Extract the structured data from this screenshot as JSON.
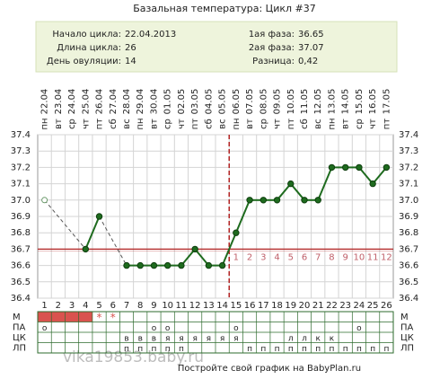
{
  "chart_data": {
    "type": "line",
    "title": "Базальная температура: Цикл #37",
    "info": {
      "left": [
        {
          "label": "Начало цикла:",
          "value": "22.04.2013"
        },
        {
          "label": "Длина цикла:",
          "value": 26
        },
        {
          "label": "День овуляции:",
          "value": 14
        }
      ],
      "right": [
        {
          "label": "1ая фаза:",
          "value": 36.65
        },
        {
          "label": "2ая фаза:",
          "value": 37.07
        },
        {
          "label": "Разница:",
          "value": 0.42,
          "value_label": "0,42"
        }
      ]
    },
    "categories": [
      "22.04",
      "23.04",
      "24.04",
      "25.04",
      "26.04",
      "27.04",
      "28.04",
      "29.04",
      "30.04",
      "01.05",
      "02.05",
      "03.05",
      "04.05",
      "05.05",
      "06.05",
      "07.05",
      "08.05",
      "09.05",
      "10.05",
      "11.05",
      "12.05",
      "13.05",
      "14.05",
      "15.05",
      "16.05",
      "17.05"
    ],
    "weekdays": [
      "пн",
      "вт",
      "ср",
      "чт",
      "пт",
      "сб",
      "вс",
      "пн",
      "вт",
      "ср",
      "чт",
      "пт",
      "сб",
      "вс",
      "пн",
      "вт",
      "ср",
      "чт",
      "пт",
      "сб",
      "вс",
      "пн",
      "вт",
      "ср",
      "чт",
      "пт"
    ],
    "day_numbers": [
      1,
      2,
      3,
      4,
      5,
      6,
      7,
      8,
      9,
      10,
      11,
      12,
      13,
      14,
      15,
      16,
      17,
      18,
      19,
      20,
      21,
      22,
      23,
      24,
      25,
      26
    ],
    "series": [
      {
        "name": "Температура",
        "color": "#1e6b1e",
        "values": [
          37.0,
          null,
          null,
          36.7,
          36.9,
          null,
          36.6,
          36.6,
          36.6,
          36.6,
          36.6,
          36.7,
          36.6,
          36.6,
          36.8,
          37.0,
          37.0,
          37.0,
          37.1,
          37.0,
          37.0,
          37.2,
          37.2,
          37.2,
          37.1,
          37.2
        ],
        "markers": [
          "open",
          null,
          null,
          "filled",
          "filled",
          null,
          "filled",
          "filled",
          "filled",
          "filled",
          "filled",
          "filled",
          "filled",
          "filled",
          "filled",
          "filled",
          "filled",
          "filled",
          "filled",
          "filled",
          "filled",
          "filled",
          "filled",
          "filled",
          "filled",
          "filled"
        ]
      }
    ],
    "cover_line": 36.7,
    "cover_color": "#b22222",
    "luteal_days": [
      1,
      2,
      3,
      4,
      5,
      6,
      7,
      8,
      9,
      10,
      11,
      12
    ],
    "luteal_color": "#c0606a",
    "ylim": [
      36.4,
      37.4
    ],
    "yticks": [
      36.4,
      36.5,
      36.6,
      36.7,
      36.8,
      36.9,
      {
        "value": 37.0,
        "label": "37.0"
      },
      37.1,
      37.2,
      37.3,
      37.4
    ],
    "grid": true,
    "rows": [
      {
        "label": "М",
        "filled_days": [
          1,
          2,
          3,
          4
        ],
        "fill_color": "#d9534f",
        "cells": [
          null,
          null,
          null,
          null,
          "*",
          "*",
          null,
          null,
          null,
          null,
          null,
          null,
          null,
          null,
          null,
          null,
          null,
          null,
          null,
          null,
          null,
          null,
          null,
          null,
          null,
          null
        ]
      },
      {
        "label": "ПА",
        "cells": [
          "o",
          null,
          null,
          null,
          null,
          null,
          null,
          null,
          "o",
          "o",
          null,
          null,
          null,
          null,
          "o",
          null,
          null,
          null,
          null,
          null,
          null,
          null,
          null,
          "o",
          null,
          null
        ]
      },
      {
        "label": "ЦК",
        "cells": [
          null,
          null,
          null,
          null,
          null,
          null,
          "в",
          "в",
          "в",
          "я",
          "я",
          "я",
          "я",
          "я",
          "я",
          null,
          null,
          null,
          "л",
          "л",
          "к",
          "к",
          null,
          null,
          null,
          null
        ]
      },
      {
        "label": "ЛП",
        "cells": [
          null,
          null,
          null,
          null,
          null,
          null,
          "п",
          "п",
          "п",
          "п",
          "п",
          null,
          null,
          null,
          null,
          "п",
          "п",
          "п",
          "п",
          "п",
          "п",
          "п",
          "п",
          "п",
          "п",
          "п"
        ]
      }
    ],
    "footer": "Постройте свой график на BabyPlan.ru",
    "watermark": "vika19853.baby.ru"
  }
}
